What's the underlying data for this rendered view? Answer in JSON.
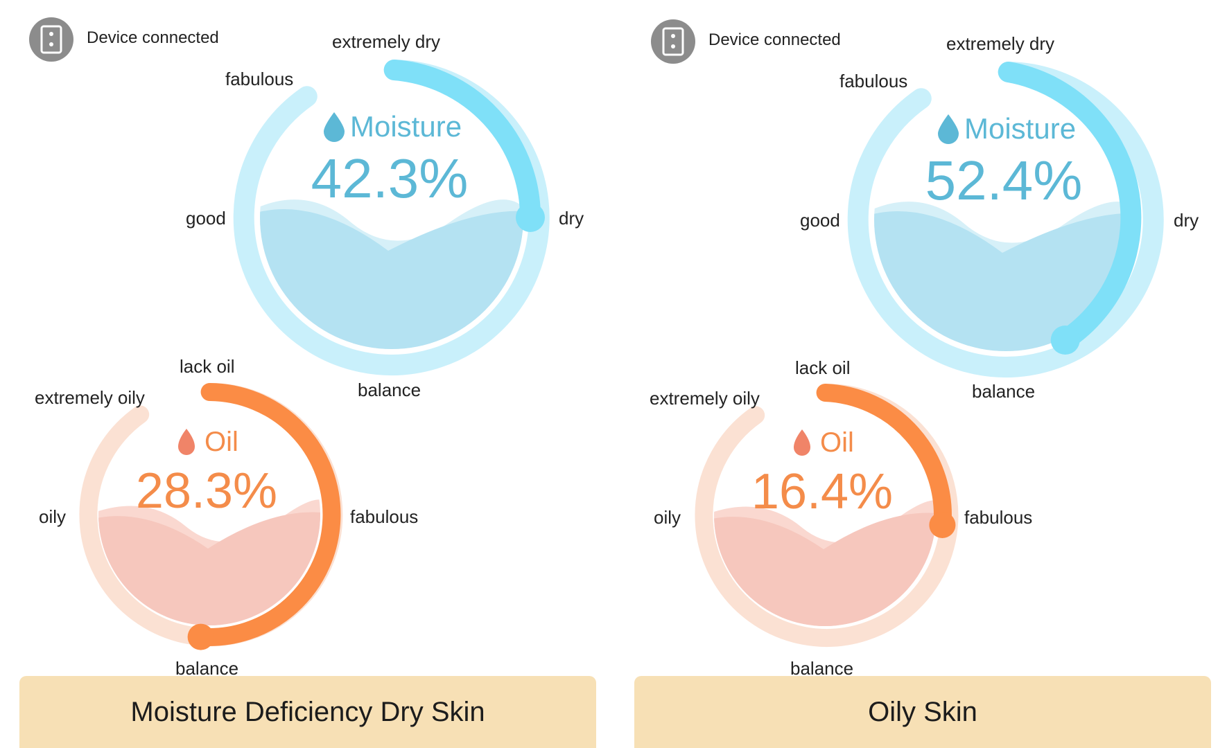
{
  "colors": {
    "moisture_track": "#c9f0fb",
    "moisture_arc": "#7fe0f8",
    "moisture_water_light": "#d6f0f8",
    "moisture_water": "#b4e2f2",
    "moisture_text": "#5cb8d6",
    "oil_track": "#fbe1d3",
    "oil_arc": "#fb8c45",
    "oil_water_light": "#fad8d0",
    "oil_water": "#f6c7bd",
    "oil_text": "#f48c4a",
    "oil_drop": "#f08468",
    "result_bg": "#f7e0b5",
    "device_icon": "#8c8c8c"
  },
  "panels": [
    {
      "status_icon": "device-icon",
      "status_text": "Device connected",
      "moisture": {
        "icon": "water-drop-icon",
        "title": "Moisture",
        "value": 42.3,
        "value_text": "42.3%",
        "labels": {
          "extremely_dry": "extremely dry",
          "fabulous": "fabulous",
          "good": "good",
          "dry": "dry",
          "balance": "balance"
        }
      },
      "oil": {
        "icon": "oil-drop-icon",
        "title": "Oil",
        "value": 28.3,
        "value_text": "28.3%",
        "labels": {
          "lack_oil": "lack oil",
          "extremely_oily": "extremely oily",
          "oily": "oily",
          "fabulous": "fabulous",
          "balance": "balance"
        }
      },
      "result": "Moisture Deficiency Dry Skin"
    },
    {
      "status_icon": "device-icon",
      "status_text": "Device connected",
      "moisture": {
        "icon": "water-drop-icon",
        "title": "Moisture",
        "value": 52.4,
        "value_text": "52.4%",
        "labels": {
          "extremely_dry": "extremely dry",
          "fabulous": "fabulous",
          "good": "good",
          "dry": "dry",
          "balance": "balance"
        }
      },
      "oil": {
        "icon": "oil-drop-icon",
        "title": "Oil",
        "value": 16.4,
        "value_text": "16.4%",
        "labels": {
          "lack_oil": "lack oil",
          "extremely_oily": "extremely oily",
          "oily": "oily",
          "fabulous": "fabulous",
          "balance": "balance"
        }
      },
      "result": "Oily Skin"
    }
  ]
}
